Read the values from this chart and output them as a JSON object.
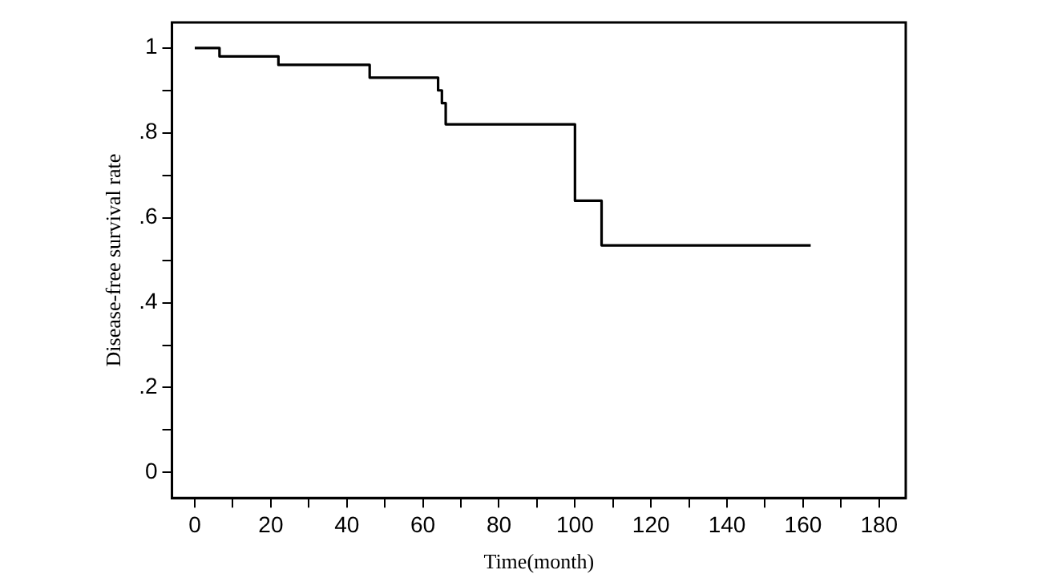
{
  "chart_data": {
    "type": "step",
    "xlabel": "Time(month)",
    "ylabel": "Disease-free survival rate",
    "series": [
      {
        "color": "#000000",
        "x": [
          0,
          6.5,
          22,
          46,
          64,
          65,
          66,
          100,
          107,
          162
        ],
        "values": [
          1,
          0.98,
          0.96,
          0.93,
          0.9,
          0.87,
          0.82,
          0.64,
          0.535,
          0.535
        ]
      }
    ],
    "xlim": [
      -6,
      187
    ],
    "ylim": [
      -0.06,
      1.06
    ],
    "xticks": [
      0,
      {
        "value": 10,
        "label": null
      },
      20,
      {
        "value": 30,
        "label": null
      },
      40,
      {
        "value": 50,
        "label": null
      },
      60,
      {
        "value": 70,
        "label": null
      },
      80,
      {
        "value": 90,
        "label": null
      },
      100,
      {
        "value": 110,
        "label": null
      },
      120,
      {
        "value": 130,
        "label": null
      },
      140,
      {
        "value": 150,
        "label": null
      },
      160,
      {
        "value": 170,
        "label": null
      },
      180
    ],
    "yticks": [
      0,
      {
        "value": 0.1,
        "label": null
      },
      {
        "value": 0.2,
        "label": ".2"
      },
      {
        "value": 0.3,
        "label": null
      },
      {
        "value": 0.4,
        "label": ".4"
      },
      {
        "value": 0.5,
        "label": null
      },
      {
        "value": 0.6,
        "label": ".6"
      },
      {
        "value": 0.7,
        "label": null
      },
      {
        "value": 0.8,
        "label": ".8"
      },
      {
        "value": 0.9,
        "label": null
      },
      1
    ],
    "grid": false,
    "legend": false,
    "marker": "none",
    "line_style": "solid"
  }
}
